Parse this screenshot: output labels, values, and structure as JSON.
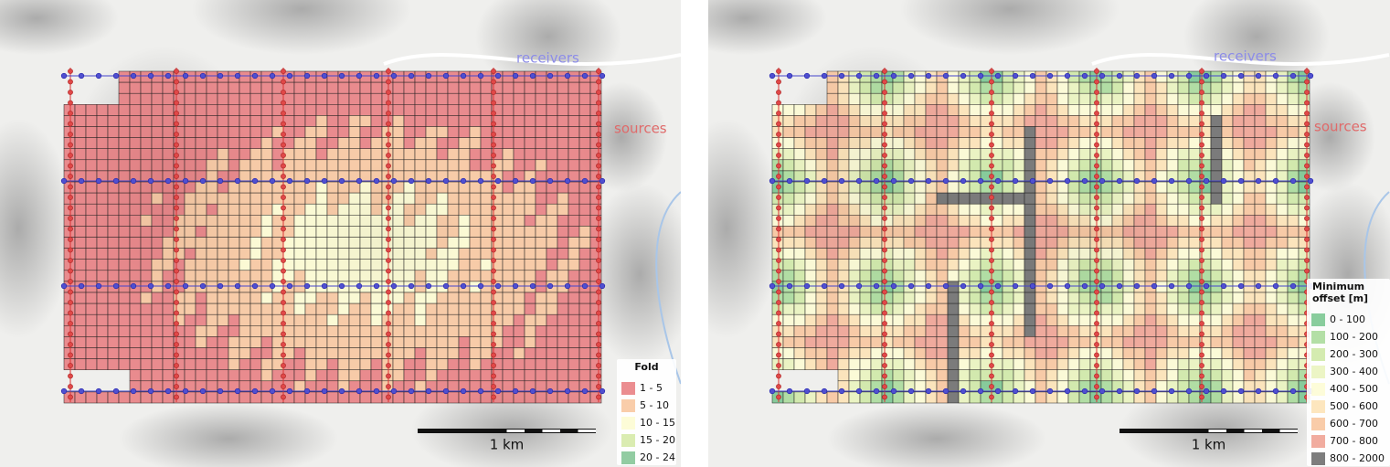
{
  "panels": [
    {
      "labels": {
        "receivers": "receivers",
        "sources": "sources"
      },
      "scale_bar": "1 km",
      "legend": {
        "title": [
          "Fold"
        ],
        "items": [
          {
            "label": "1 - 5",
            "color": "#e8797c"
          },
          {
            "label": "5 - 10",
            "color": "#f8c49b"
          },
          {
            "label": "10 - 15",
            "color": "#fdfbd0"
          },
          {
            "label": "15 - 20",
            "color": "#d3e9a3"
          },
          {
            "label": "20 - 24",
            "color": "#7fc392"
          }
        ]
      }
    },
    {
      "labels": {
        "receivers": "receivers",
        "sources": "sources"
      },
      "scale_bar": "1 km",
      "legend": {
        "title": [
          "Minimum",
          "offset [m]"
        ],
        "items": [
          {
            "label": "0 - 100",
            "color": "#74c48c"
          },
          {
            "label": "100 - 200",
            "color": "#a6d997"
          },
          {
            "label": "200 - 300",
            "color": "#cde8a2"
          },
          {
            "label": "300 - 400",
            "color": "#e9f3bb"
          },
          {
            "label": "400 - 500",
            "color": "#fdfbd2"
          },
          {
            "label": "500 - 600",
            "color": "#fde2b3"
          },
          {
            "label": "600 - 700",
            "color": "#f8c39a"
          },
          {
            "label": "700 - 800",
            "color": "#ee9d8e"
          },
          {
            "label": "800 - 2000",
            "color": "#666666"
          }
        ]
      }
    }
  ]
}
